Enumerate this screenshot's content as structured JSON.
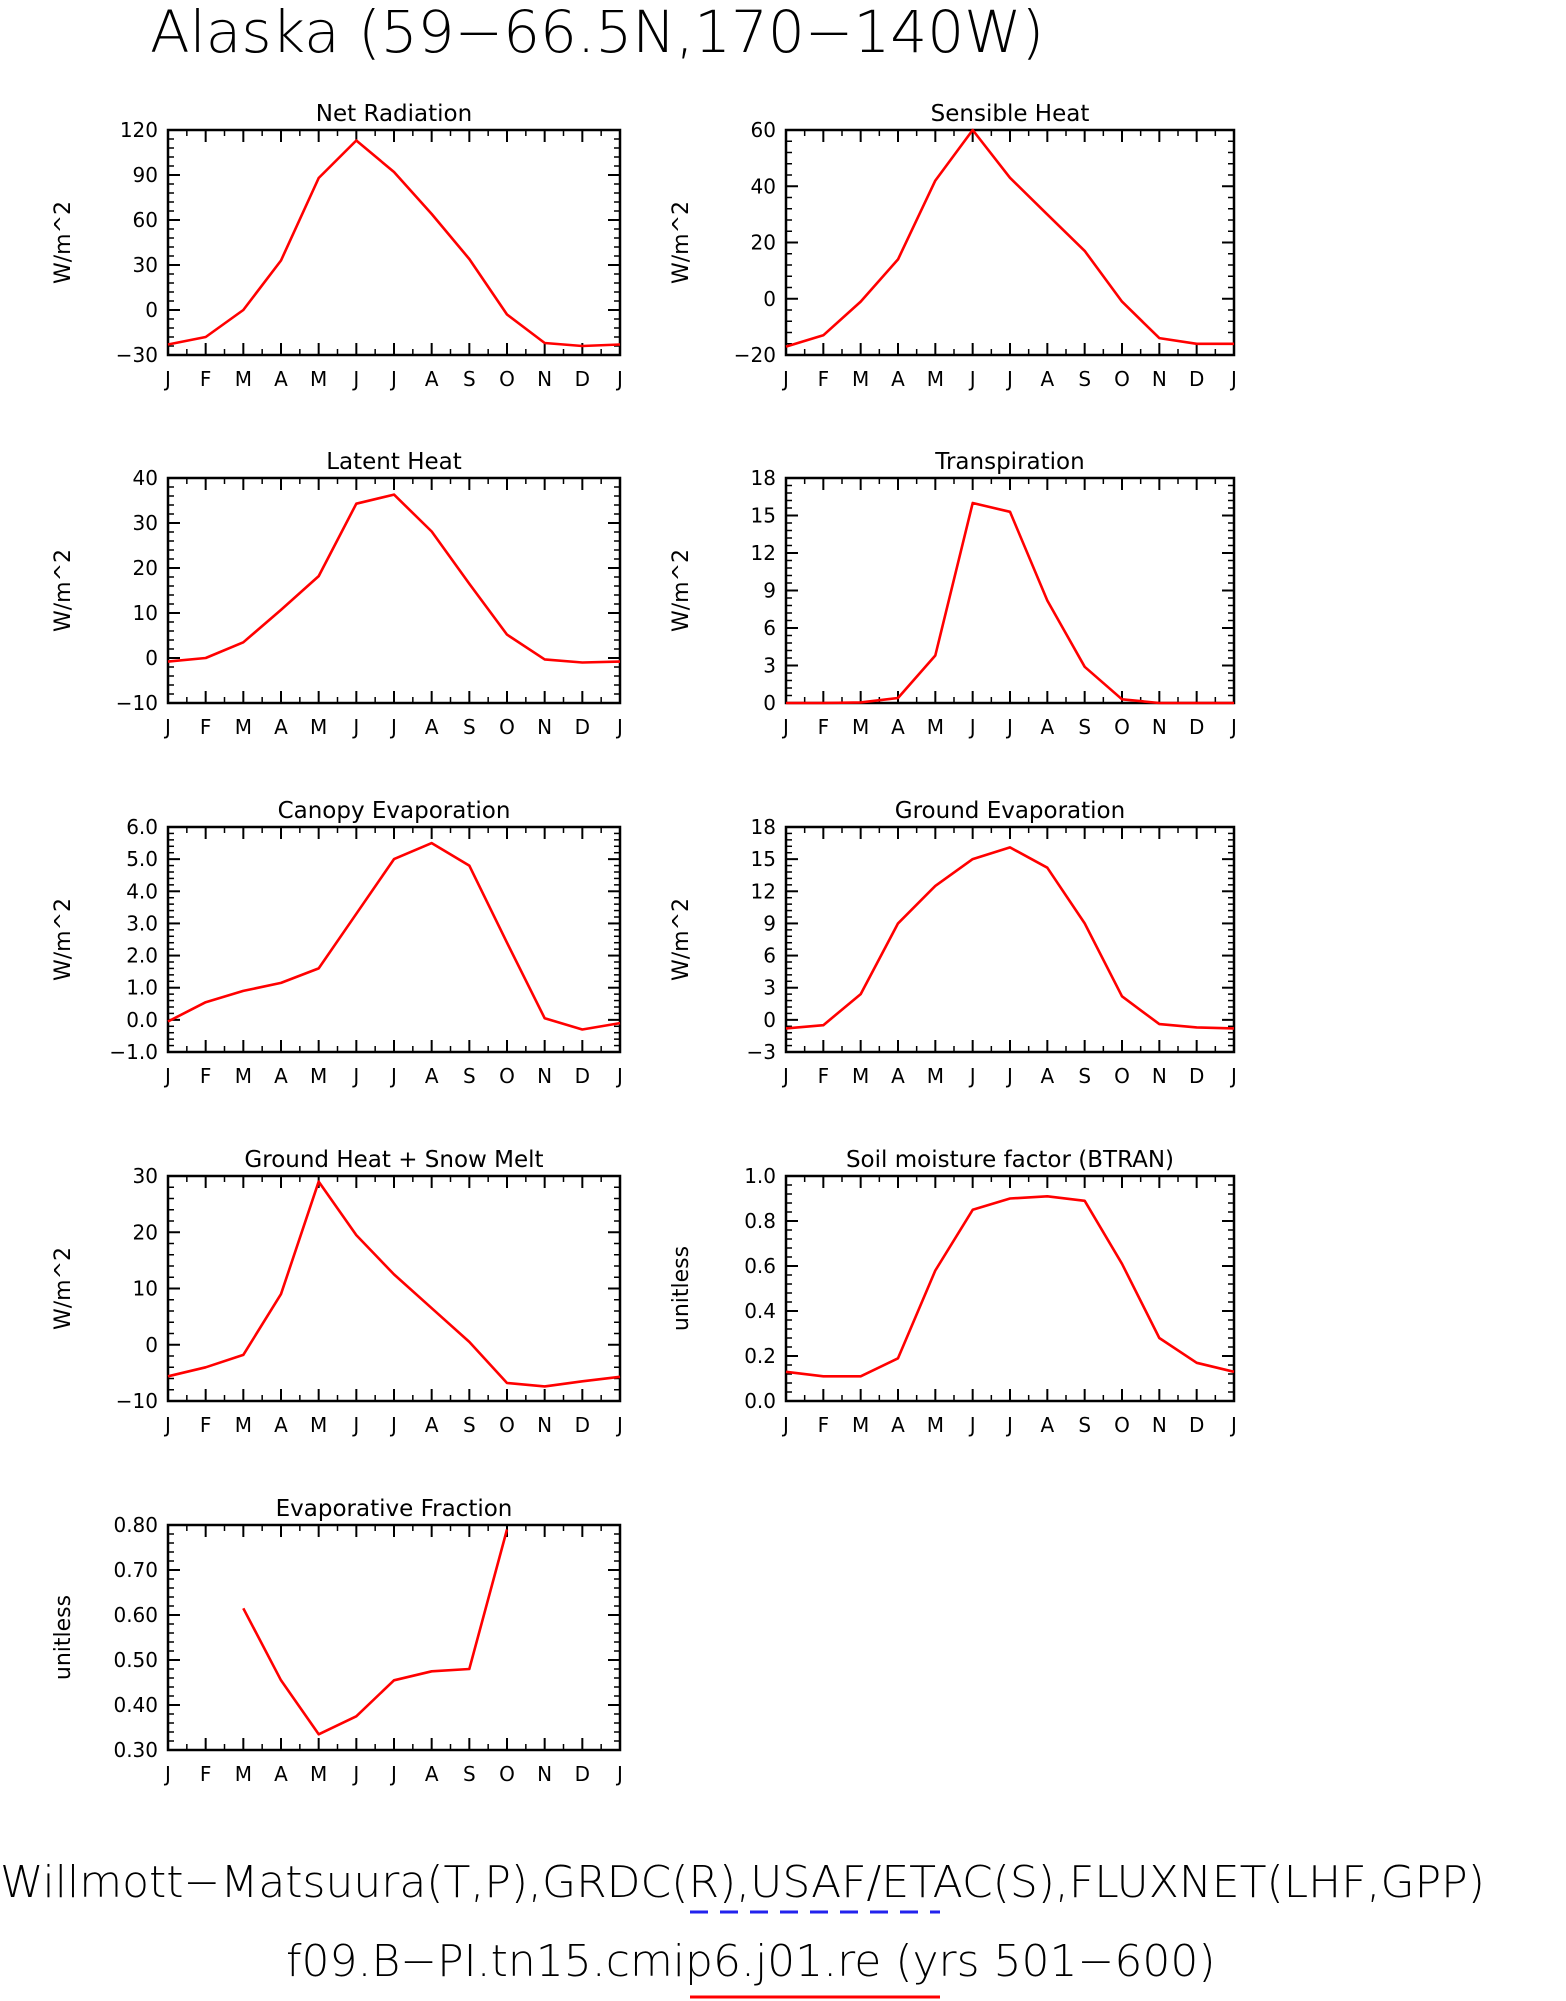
{
  "page": {
    "title": "Alaska (59−66.5N,170−140W)",
    "footer_line1": "Willmott−Matsuura(T,P),GRDC(R),USAF/ETAC(S),FLUXNET(LHF,GPP)",
    "footer_line2": "f09.B−PI.tn15.cmip6.j01.re (yrs 501−600)",
    "colors": {
      "model": "#ff0000",
      "obs": "#2222ee",
      "axis": "#000000"
    }
  },
  "chart_data": [
    {
      "type": "line",
      "title": "Net Radiation",
      "ylabel": "W/m^2",
      "categories": [
        "J",
        "F",
        "M",
        "A",
        "M",
        "J",
        "J",
        "A",
        "S",
        "O",
        "N",
        "D",
        "J"
      ],
      "ylim": [
        -30,
        120
      ],
      "yticks": [
        -30,
        0,
        30,
        60,
        90,
        120
      ],
      "ytick_labels": [
        "−30",
        "0",
        "30",
        "60",
        "90",
        "120"
      ],
      "series": [
        {
          "values": [
            -23,
            -18,
            0,
            33,
            88,
            113,
            92,
            64,
            34,
            -3,
            -22,
            -24,
            -23
          ]
        }
      ]
    },
    {
      "type": "line",
      "title": "Sensible Heat",
      "ylabel": "W/m^2",
      "categories": [
        "J",
        "F",
        "M",
        "A",
        "M",
        "J",
        "J",
        "A",
        "S",
        "O",
        "N",
        "D",
        "J"
      ],
      "ylim": [
        -20,
        60
      ],
      "yticks": [
        -20,
        0,
        20,
        40,
        60
      ],
      "ytick_labels": [
        "−20",
        "0",
        "20",
        "40",
        "60"
      ],
      "series": [
        {
          "values": [
            -17,
            -13,
            -1,
            14,
            42,
            60,
            43,
            30,
            17,
            -1,
            -14,
            -16,
            -16
          ]
        }
      ]
    },
    {
      "type": "line",
      "title": "Latent Heat",
      "ylabel": "W/m^2",
      "categories": [
        "J",
        "F",
        "M",
        "A",
        "M",
        "J",
        "J",
        "A",
        "S",
        "O",
        "N",
        "D",
        "J"
      ],
      "ylim": [
        -10,
        40
      ],
      "yticks": [
        -10,
        0,
        10,
        20,
        30,
        40
      ],
      "ytick_labels": [
        "−10",
        "0",
        "10",
        "20",
        "30",
        "40"
      ],
      "series": [
        {
          "values": [
            -0.8,
            0,
            3.5,
            10.7,
            18.2,
            34.3,
            36.3,
            28.1,
            16.5,
            5.2,
            -0.3,
            -1,
            -0.8
          ]
        }
      ]
    },
    {
      "type": "line",
      "title": "Transpiration",
      "ylabel": "W/m^2",
      "categories": [
        "J",
        "F",
        "M",
        "A",
        "M",
        "J",
        "J",
        "A",
        "S",
        "O",
        "N",
        "D",
        "J"
      ],
      "ylim": [
        0,
        18
      ],
      "yticks": [
        0,
        3,
        6,
        9,
        12,
        15,
        18
      ],
      "ytick_labels": [
        "0",
        "3",
        "6",
        "9",
        "12",
        "15",
        "18"
      ],
      "series": [
        {
          "values": [
            0,
            0,
            0.05,
            0.4,
            3.8,
            16,
            15.3,
            8.2,
            2.9,
            0.3,
            0,
            0,
            0
          ]
        }
      ]
    },
    {
      "type": "line",
      "title": "Canopy Evaporation",
      "ylabel": "W/m^2",
      "categories": [
        "J",
        "F",
        "M",
        "A",
        "M",
        "J",
        "J",
        "A",
        "S",
        "O",
        "N",
        "D",
        "J"
      ],
      "ylim": [
        -1,
        6
      ],
      "yticks": [
        -1,
        0,
        1,
        2,
        3,
        4,
        5,
        6
      ],
      "ytick_labels": [
        "−1.0",
        "0.0",
        "1.0",
        "2.0",
        "3.0",
        "4.0",
        "5.0",
        "6.0"
      ],
      "series": [
        {
          "values": [
            -0.05,
            0.55,
            0.9,
            1.15,
            1.6,
            3.3,
            5,
            5.5,
            4.8,
            2.4,
            0.05,
            -0.3,
            -0.1
          ]
        }
      ]
    },
    {
      "type": "line",
      "title": "Ground Evaporation",
      "ylabel": "W/m^2",
      "categories": [
        "J",
        "F",
        "M",
        "A",
        "M",
        "J",
        "J",
        "A",
        "S",
        "O",
        "N",
        "D",
        "J"
      ],
      "ylim": [
        -3,
        18
      ],
      "yticks": [
        -3,
        0,
        3,
        6,
        9,
        12,
        15,
        18
      ],
      "ytick_labels": [
        "−3",
        "0",
        "3",
        "6",
        "9",
        "12",
        "15",
        "18"
      ],
      "series": [
        {
          "values": [
            -0.8,
            -0.5,
            2.4,
            9,
            12.5,
            15,
            16.1,
            14.2,
            9,
            2.2,
            -0.4,
            -0.7,
            -0.8
          ]
        }
      ]
    },
    {
      "type": "line",
      "title": "Ground Heat + Snow Melt",
      "ylabel": "W/m^2",
      "categories": [
        "J",
        "F",
        "M",
        "A",
        "M",
        "J",
        "J",
        "A",
        "S",
        "O",
        "N",
        "D",
        "J"
      ],
      "ylim": [
        -10,
        30
      ],
      "yticks": [
        -10,
        0,
        10,
        20,
        30
      ],
      "ytick_labels": [
        "−10",
        "0",
        "10",
        "20",
        "30"
      ],
      "series": [
        {
          "values": [
            -5.6,
            -4,
            -1.8,
            9,
            29,
            19.5,
            12.5,
            6.5,
            0.5,
            -6.8,
            -7.4,
            -6.5,
            -5.7
          ]
        }
      ]
    },
    {
      "type": "line",
      "title": "Soil moisture factor (BTRAN)",
      "ylabel": "unitless",
      "categories": [
        "J",
        "F",
        "M",
        "A",
        "M",
        "J",
        "J",
        "A",
        "S",
        "O",
        "N",
        "D",
        "J"
      ],
      "ylim": [
        0,
        1
      ],
      "yticks": [
        0,
        0.2,
        0.4,
        0.6,
        0.8,
        1.0
      ],
      "ytick_labels": [
        "0.0",
        "0.2",
        "0.4",
        "0.6",
        "0.8",
        "1.0"
      ],
      "series": [
        {
          "values": [
            0.13,
            0.11,
            0.11,
            0.19,
            0.58,
            0.85,
            0.9,
            0.91,
            0.89,
            0.61,
            0.28,
            0.17,
            0.13
          ]
        }
      ]
    },
    {
      "type": "line",
      "title": "Evaporative Fraction",
      "ylabel": "unitless",
      "categories": [
        "J",
        "F",
        "M",
        "A",
        "M",
        "J",
        "J",
        "A",
        "S",
        "O",
        "N",
        "D",
        "J"
      ],
      "ylim": [
        0.3,
        0.8
      ],
      "yticks": [
        0.3,
        0.4,
        0.5,
        0.6,
        0.7,
        0.8
      ],
      "ytick_labels": [
        "0.30",
        "0.40",
        "0.50",
        "0.60",
        "0.70",
        "0.80"
      ],
      "series": [
        {
          "values": [
            null,
            null,
            0.615,
            0.455,
            0.335,
            0.375,
            0.455,
            0.475,
            0.48,
            0.79,
            null,
            null,
            null
          ]
        }
      ]
    }
  ]
}
